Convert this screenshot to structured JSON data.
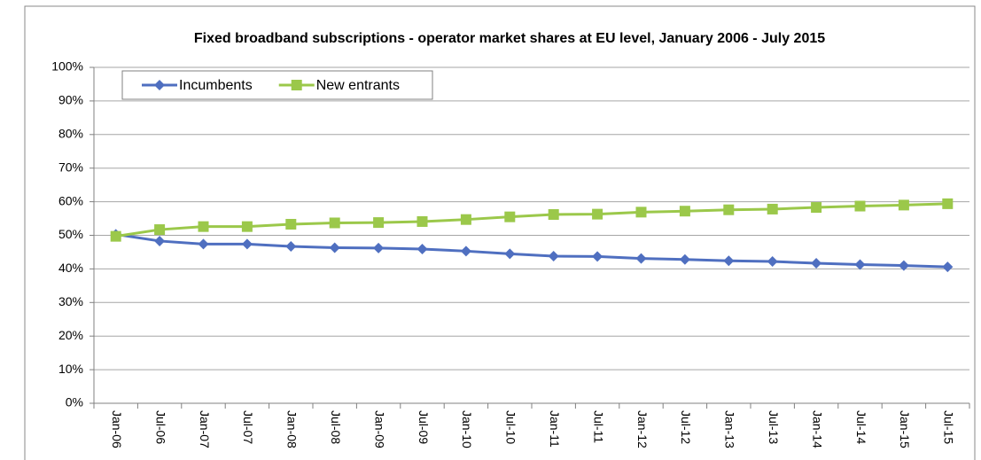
{
  "chart_data": {
    "type": "line",
    "title": "Fixed broadband subscriptions - operator market shares at EU level, January 2006 - July 2015",
    "categories": [
      "Jan-06",
      "Jul-06",
      "Jan-07",
      "Jul-07",
      "Jan-08",
      "Jul-08",
      "Jan-09",
      "Jul-09",
      "Jan-10",
      "Jul-10",
      "Jan-11",
      "Jul-11",
      "Jan-12",
      "Jul-12",
      "Jan-13",
      "Jul-13",
      "Jan-14",
      "Jul-14",
      "Jan-15",
      "Jul-15"
    ],
    "series": [
      {
        "name": "Incumbents",
        "color": "#4f6fc0",
        "marker": "diamond",
        "values": [
          50.3,
          48.3,
          47.4,
          47.4,
          46.7,
          46.3,
          46.2,
          45.9,
          45.3,
          44.5,
          43.8,
          43.7,
          43.1,
          42.8,
          42.4,
          42.2,
          41.7,
          41.3,
          41.0,
          40.6
        ]
      },
      {
        "name": "New entrants",
        "color": "#9bc84a",
        "marker": "square",
        "values": [
          49.7,
          51.7,
          52.6,
          52.6,
          53.3,
          53.7,
          53.8,
          54.1,
          54.7,
          55.5,
          56.2,
          56.3,
          56.9,
          57.2,
          57.6,
          57.8,
          58.3,
          58.7,
          59.0,
          59.4
        ]
      }
    ],
    "ylim": [
      0,
      100
    ],
    "yticks": [
      {
        "value": 0,
        "label": "0%"
      },
      {
        "value": 10,
        "label": "10%"
      },
      {
        "value": 20,
        "label": "20%"
      },
      {
        "value": 30,
        "label": "30%"
      },
      {
        "value": 40,
        "label": "40%"
      },
      {
        "value": 50,
        "label": "50%"
      },
      {
        "value": 60,
        "label": "60%"
      },
      {
        "value": 70,
        "label": "70%"
      },
      {
        "value": 80,
        "label": "80%"
      },
      {
        "value": 90,
        "label": "90%"
      },
      {
        "value": 100,
        "label": "100%"
      }
    ],
    "grid": true,
    "legend": "top-left"
  }
}
